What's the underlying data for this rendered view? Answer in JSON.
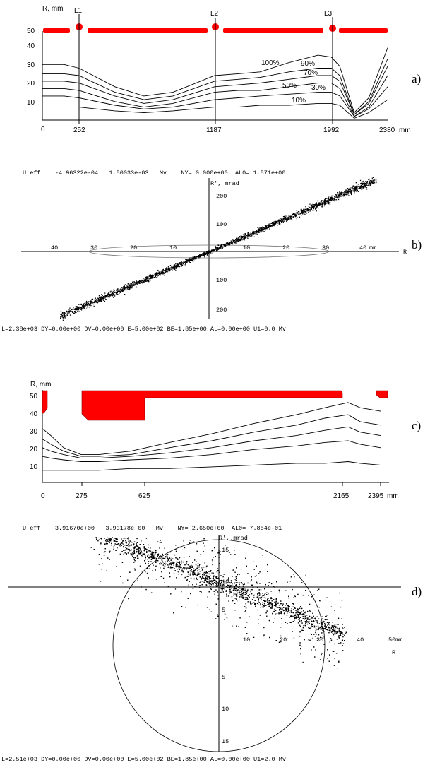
{
  "chart_data": [
    {
      "type": "line",
      "panel_label": "a)",
      "ylabel": "R, mm",
      "xunit": "mm",
      "yticks": [
        "50",
        "40",
        "30",
        "20",
        "10"
      ],
      "xticks": [
        "0",
        "252",
        "1187",
        "1992",
        "2380"
      ],
      "element_labels": [
        "L1",
        "L2",
        "L3"
      ],
      "curve_labels": [
        "100%",
        "90%",
        "70%",
        "50%",
        "30%",
        "10%"
      ],
      "aperture_color": "#ff0000",
      "series": [
        {
          "name": "100%",
          "x": [
            0,
            150,
            252,
            500,
            700,
            900,
            1187,
            1350,
            1500,
            1700,
            1900,
            1992,
            2050,
            2150,
            2250,
            2380
          ],
          "y": [
            30,
            30,
            28,
            18,
            13,
            15,
            24,
            25,
            26,
            31,
            35,
            34,
            29,
            4,
            12,
            39
          ]
        },
        {
          "name": "90%",
          "x": [
            0,
            150,
            252,
            500,
            700,
            900,
            1187,
            1350,
            1500,
            1700,
            1900,
            1992,
            2050,
            2150,
            2250,
            2380
          ],
          "y": [
            25,
            25,
            24,
            15,
            11,
            13,
            21,
            22,
            23,
            26,
            28,
            28,
            24,
            3,
            10,
            33
          ]
        },
        {
          "name": "70%",
          "x": [
            0,
            150,
            252,
            500,
            700,
            900,
            1187,
            1350,
            1500,
            1700,
            1900,
            1992,
            2050,
            2150,
            2250,
            2380
          ],
          "y": [
            21,
            21,
            20,
            13,
            9,
            11,
            18,
            19,
            20,
            22,
            24,
            24,
            21,
            3,
            9,
            29
          ]
        },
        {
          "name": "50%",
          "x": [
            0,
            150,
            252,
            500,
            700,
            900,
            1187,
            1350,
            1500,
            1700,
            1900,
            1992,
            2050,
            2150,
            2250,
            2380
          ],
          "y": [
            17,
            17,
            16,
            10,
            7,
            9,
            15,
            16,
            16,
            18,
            20,
            20,
            17,
            2,
            7,
            24
          ]
        },
        {
          "name": "30%",
          "x": [
            0,
            150,
            252,
            500,
            700,
            900,
            1187,
            1350,
            1500,
            1700,
            1900,
            1992,
            2050,
            2150,
            2250,
            2380
          ],
          "y": [
            13,
            13,
            12,
            8,
            6,
            7,
            11,
            12,
            13,
            14,
            15,
            15,
            13,
            2,
            6,
            18
          ]
        },
        {
          "name": "10%",
          "x": [
            0,
            150,
            252,
            500,
            700,
            900,
            1187,
            1350,
            1500,
            1700,
            1900,
            1992,
            2050,
            2150,
            2250,
            2380
          ],
          "y": [
            7,
            7,
            7,
            5,
            4,
            5,
            7,
            7,
            8,
            8,
            9,
            9,
            8,
            1,
            4,
            11
          ]
        }
      ]
    },
    {
      "type": "scatter",
      "panel_label": "b)",
      "header": "U eff    -4.96322e-04   1.50033e-03   Mv    NY= 0.000e+00  AL0= 1.571e+00",
      "footer": "L=2.38e+03 DY=0.00e+00 DV=0.00e+00 E=5.00e+02 BE=1.85e+00 AL=0.00e+00 U1=0.0 Mv",
      "xlabel": "R",
      "ylabel": "R', mrad",
      "xunit": "mm",
      "xticks_left": [
        "40",
        "30",
        "20",
        "10"
      ],
      "xticks_right": [
        "10",
        "20",
        "30",
        "40"
      ],
      "yticks": [
        "200",
        "100",
        "100",
        "200"
      ],
      "trend": {
        "x": [
          -42,
          42
        ],
        "y": [
          -260,
          260
        ]
      },
      "ellipse": {
        "a": 30,
        "b": 8
      }
    },
    {
      "type": "line",
      "panel_label": "c)",
      "ylabel": "R, mm",
      "xunit": "mm",
      "yticks": [
        "50",
        "40",
        "30",
        "20",
        "10"
      ],
      "xticks": [
        "0",
        "275",
        "625",
        "2165",
        "2395"
      ],
      "aperture_color": "#ff0000",
      "series": [
        {
          "x": [
            0,
            60,
            150,
            275,
            400,
            625,
            900,
            1200,
            1500,
            1800,
            2000,
            2165,
            2250,
            2395
          ],
          "y": [
            31,
            27,
            20,
            16,
            16,
            18,
            23,
            28,
            34,
            39,
            43,
            46,
            43,
            41
          ]
        },
        {
          "x": [
            0,
            60,
            150,
            275,
            400,
            625,
            900,
            1200,
            1500,
            1800,
            2000,
            2165,
            2250,
            2395
          ],
          "y": [
            25,
            22,
            18,
            15,
            15,
            16,
            20,
            24,
            29,
            33,
            37,
            39,
            35,
            33
          ]
        },
        {
          "x": [
            0,
            60,
            150,
            275,
            400,
            625,
            900,
            1200,
            1500,
            1800,
            2000,
            2165,
            2250,
            2395
          ],
          "y": [
            20,
            18,
            16,
            14,
            14,
            15,
            17,
            20,
            24,
            27,
            30,
            32,
            29,
            27
          ]
        },
        {
          "x": [
            0,
            60,
            150,
            275,
            400,
            625,
            900,
            1200,
            1500,
            1800,
            2000,
            2165,
            2250,
            2395
          ],
          "y": [
            15,
            14,
            13,
            12,
            12,
            13,
            14,
            16,
            19,
            21,
            23,
            24,
            22,
            20
          ]
        },
        {
          "x": [
            0,
            60,
            150,
            275,
            400,
            625,
            900,
            1200,
            1500,
            1800,
            2000,
            2165,
            2250,
            2395
          ],
          "y": [
            7,
            7,
            7,
            7,
            7,
            8,
            8,
            9,
            10,
            11,
            11,
            12,
            11,
            10
          ]
        }
      ]
    },
    {
      "type": "scatter",
      "panel_label": "d)",
      "header": "U eff    3.91670e+00   3.93178e+00   Mv    NY= 2.650e+00  AL0= 7.854e-01",
      "footer": "L=2.51e+03 DY=0.00e+00 DV=0.00e+00 E=5.00e+02 BE=1.85e+00 AL=0.00e+00 U1=2.0 Mv",
      "xlabel": "R",
      "ylabel": "R', mrad",
      "xunit": "mm",
      "xticks": [
        "10",
        "20",
        "30",
        "40",
        "50"
      ],
      "yticks": [
        "15",
        "10",
        "5",
        "5",
        "10",
        "15"
      ],
      "trend": {
        "x": [
          -34,
          34
        ],
        "y": [
          8.5,
          -7.2
        ]
      }
    }
  ]
}
